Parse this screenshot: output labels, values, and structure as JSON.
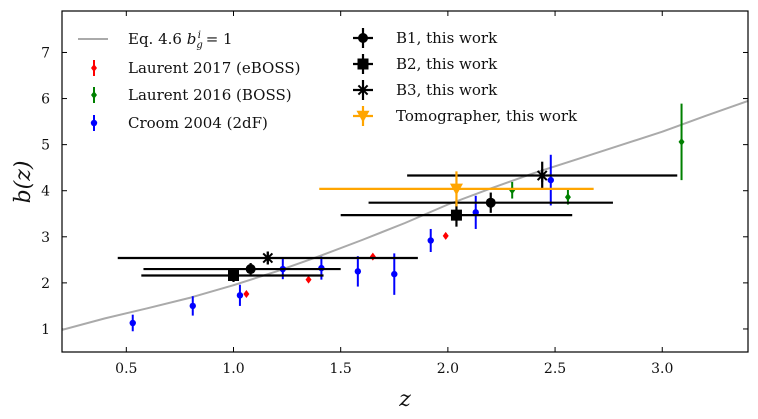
{
  "chart_data": {
    "type": "scatter",
    "title": "",
    "xlabel": "z",
    "ylabel": "b(z)",
    "xlim": [
      0.2,
      3.4
    ],
    "ylim": [
      0.5,
      7.9
    ],
    "xticks": [
      "0.5",
      "1.0",
      "1.5",
      "2.0",
      "2.5",
      "3.0"
    ],
    "xtick_values": [
      0.5,
      1.0,
      1.5,
      2.0,
      2.5,
      3.0
    ],
    "yticks": [
      "1",
      "2",
      "3",
      "4",
      "5",
      "6",
      "7"
    ],
    "ytick_values": [
      1,
      2,
      3,
      4,
      5,
      6,
      7
    ],
    "legend_position": "top-left",
    "curve": {
      "name": "Eq. 4.6 b_g^i = 1",
      "label_prefix": "Eq. 4.6 ",
      "label_math": "b",
      "label_sub": "g",
      "label_sup": "i",
      "label_suffix": " = 1",
      "color": "#aaaaaa",
      "x": [
        0.2,
        0.4,
        0.6,
        0.8,
        1.0,
        1.2,
        1.4,
        1.6,
        1.8,
        2.0,
        2.2,
        2.4,
        2.6,
        2.8,
        3.0,
        3.2,
        3.4
      ],
      "y": [
        0.98,
        1.23,
        1.45,
        1.68,
        1.95,
        2.25,
        2.58,
        2.93,
        3.3,
        3.7,
        4.05,
        4.38,
        4.68,
        4.98,
        5.28,
        5.62,
        5.95
      ]
    },
    "series": [
      {
        "name": "Laurent 2017 (eBOSS)",
        "color": "#ff0000",
        "marker": "diamond",
        "points": [
          {
            "x": 1.06,
            "y": 1.76,
            "yerr": 0.04
          },
          {
            "x": 1.35,
            "y": 2.07,
            "yerr": 0.05
          },
          {
            "x": 1.65,
            "y": 2.57,
            "yerr": 0.05
          },
          {
            "x": 1.99,
            "y": 3.02,
            "yerr": 0.06
          }
        ]
      },
      {
        "name": "Laurent 2016 (BOSS)",
        "color": "#008000",
        "marker": "diamond",
        "points": [
          {
            "x": 2.3,
            "y": 4.01,
            "yerr": 0.18
          },
          {
            "x": 2.56,
            "y": 3.86,
            "yerr": 0.16
          },
          {
            "x": 3.09,
            "y": 5.06,
            "yerr": 0.83
          }
        ]
      },
      {
        "name": "Croom 2004 (2dF)",
        "color": "#0000ff",
        "marker": "circle",
        "points": [
          {
            "x": 0.53,
            "y": 1.13,
            "yerr": 0.18
          },
          {
            "x": 0.81,
            "y": 1.5,
            "yerr": 0.21
          },
          {
            "x": 1.03,
            "y": 1.73,
            "yerr": 0.23
          },
          {
            "x": 1.23,
            "y": 2.3,
            "yerr": 0.22
          },
          {
            "x": 1.41,
            "y": 2.32,
            "yerr": 0.25
          },
          {
            "x": 1.58,
            "y": 2.25,
            "yerr": 0.33
          },
          {
            "x": 1.75,
            "y": 2.19,
            "yerr": 0.45
          },
          {
            "x": 1.92,
            "y": 2.92,
            "yerr": 0.25
          },
          {
            "x": 2.13,
            "y": 3.53,
            "yerr": 0.36
          },
          {
            "x": 2.48,
            "y": 4.23,
            "yerr": 0.55
          }
        ]
      },
      {
        "name": "B1, this work",
        "color": "#000000",
        "marker": "circle",
        "points": [
          {
            "x": 1.08,
            "y": 2.3,
            "xerr": [
              0.5,
              0.42
            ],
            "yerr": 0.13
          },
          {
            "x": 2.2,
            "y": 3.74,
            "xerr": [
              0.57,
              0.57
            ],
            "yerr": 0.22
          }
        ]
      },
      {
        "name": "B2, this work",
        "color": "#000000",
        "marker": "square",
        "points": [
          {
            "x": 1.0,
            "y": 2.16,
            "xerr": [
              0.43,
              0.42
            ],
            "yerr": 0.14
          },
          {
            "x": 2.04,
            "y": 3.47,
            "xerr": [
              0.54,
              0.54
            ],
            "yerr": 0.25
          }
        ]
      },
      {
        "name": "B3, this work",
        "color": "#000000",
        "marker": "star",
        "points": [
          {
            "x": 1.16,
            "y": 2.54,
            "xerr": [
              0.7,
              0.7
            ],
            "yerr": 0.14
          },
          {
            "x": 2.44,
            "y": 4.33,
            "xerr": [
              0.63,
              0.63
            ],
            "yerr": 0.3
          }
        ]
      },
      {
        "name": "Tomographer, this work",
        "color": "#ffa500",
        "marker": "triangle-down",
        "points": [
          {
            "x": 2.04,
            "y": 4.04,
            "xerr": [
              0.64,
              0.64
            ],
            "yerr": 0.38
          }
        ]
      }
    ]
  }
}
